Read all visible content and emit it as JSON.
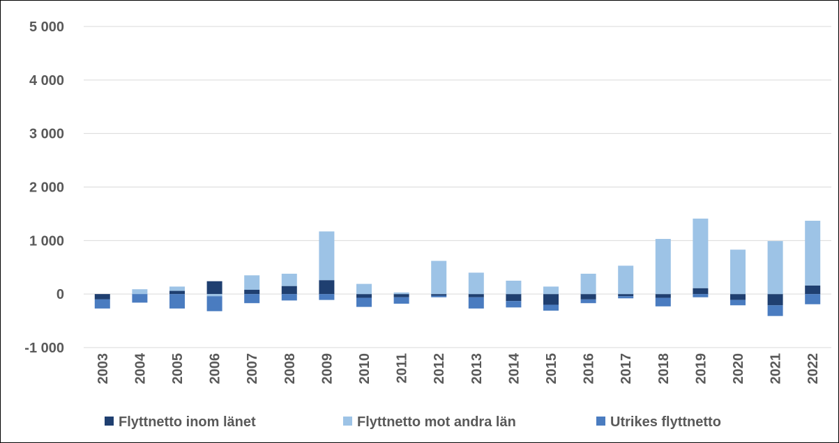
{
  "chart_data": {
    "type": "stacked_bar",
    "categories": [
      "2003",
      "2004",
      "2005",
      "2006",
      "2007",
      "2008",
      "2009",
      "2010",
      "2011",
      "2012",
      "2013",
      "2014",
      "2015",
      "2016",
      "2017",
      "2018",
      "2019",
      "2020",
      "2021",
      "2022"
    ],
    "series": [
      {
        "name": "Flyttnetto inom länet",
        "color": "#1f3f70",
        "values": [
          -100,
          0,
          60,
          240,
          80,
          150,
          260,
          -70,
          -60,
          -30,
          -60,
          -130,
          -200,
          -100,
          -40,
          -70,
          110,
          -110,
          -210,
          160
        ]
      },
      {
        "name": "Flyttnetto mot andra län",
        "color": "#9dc3e6",
        "values": [
          0,
          90,
          80,
          -40,
          270,
          230,
          910,
          190,
          30,
          620,
          400,
          250,
          140,
          380,
          530,
          1030,
          1300,
          830,
          990,
          1210
        ]
      },
      {
        "name": "Utrikes flyttnetto",
        "color": "#4a7cc0",
        "values": [
          -170,
          -160,
          -270,
          -280,
          -170,
          -120,
          -110,
          -170,
          -120,
          -30,
          -210,
          -120,
          -110,
          -70,
          -40,
          -160,
          -60,
          -100,
          -200,
          -190
        ]
      }
    ],
    "ylim": [
      -1000,
      5000
    ],
    "yticks": [
      {
        "value": -1000,
        "label": "-1 000"
      },
      0,
      {
        "value": 1000,
        "label": "1 000"
      },
      {
        "value": 2000,
        "label": "2 000"
      },
      {
        "value": 3000,
        "label": "3 000"
      },
      {
        "value": 4000,
        "label": "4 000"
      },
      {
        "value": 5000,
        "label": "5 000"
      }
    ],
    "grid": true,
    "legend": "bottom"
  }
}
